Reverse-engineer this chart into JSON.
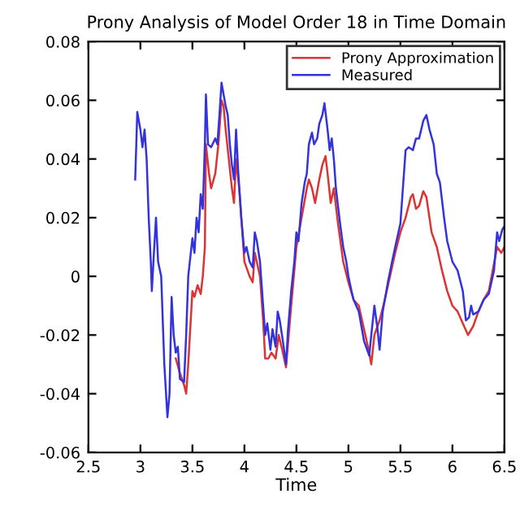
{
  "chart_data": {
    "type": "line",
    "title": "Prony Analysis of Model Order 18 in Time Domain",
    "xlabel": "Time",
    "xlim": [
      2.5,
      6.5
    ],
    "xticks": [
      2.5,
      3,
      3.5,
      4,
      4.5,
      5,
      5.5,
      6,
      6.5
    ],
    "ylim": [
      -0.06,
      0.08
    ],
    "yticks": [
      -0.06,
      -0.04,
      -0.02,
      0,
      0.02,
      0.04,
      0.06,
      0.08
    ],
    "grid": false,
    "legend": "top right",
    "line_style": "solid",
    "series": [
      {
        "name": "Prony Approximation",
        "color": "#dd3333",
        "x": [
          3.34,
          3.38,
          3.42,
          3.44,
          3.46,
          3.5,
          3.52,
          3.55,
          3.58,
          3.6,
          3.62,
          3.63,
          3.66,
          3.68,
          3.72,
          3.75,
          3.78,
          3.8,
          3.82,
          3.85,
          3.88,
          3.9,
          3.92,
          3.95,
          4.0,
          4.05,
          4.08,
          4.1,
          4.15,
          4.18,
          4.2,
          4.23,
          4.26,
          4.3,
          4.33,
          4.37,
          4.4,
          4.45,
          4.5,
          4.55,
          4.6,
          4.62,
          4.65,
          4.68,
          4.72,
          4.75,
          4.78,
          4.8,
          4.83,
          4.86,
          4.9,
          4.95,
          5.0,
          5.05,
          5.1,
          5.15,
          5.2,
          5.22,
          5.25,
          5.3,
          5.35,
          5.45,
          5.5,
          5.55,
          5.6,
          5.62,
          5.65,
          5.68,
          5.72,
          5.75,
          5.8,
          5.85,
          5.9,
          5.95,
          6.0,
          6.05,
          6.1,
          6.15,
          6.2,
          6.25,
          6.3,
          6.35,
          6.43,
          6.47,
          6.5
        ],
        "values": [
          -0.028,
          -0.033,
          -0.037,
          -0.04,
          -0.03,
          -0.005,
          -0.007,
          -0.003,
          -0.006,
          0.0,
          0.01,
          0.045,
          0.035,
          0.03,
          0.035,
          0.045,
          0.06,
          0.058,
          0.05,
          0.04,
          0.03,
          0.025,
          0.04,
          0.03,
          0.005,
          0.0,
          -0.002,
          0.008,
          0.0,
          -0.015,
          -0.028,
          -0.028,
          -0.026,
          -0.028,
          -0.02,
          -0.026,
          -0.031,
          -0.01,
          0.01,
          0.02,
          0.03,
          0.033,
          0.03,
          0.025,
          0.033,
          0.038,
          0.041,
          0.035,
          0.025,
          0.03,
          0.018,
          0.005,
          -0.002,
          -0.008,
          -0.01,
          -0.018,
          -0.026,
          -0.03,
          -0.02,
          -0.015,
          -0.008,
          0.008,
          0.015,
          0.02,
          0.027,
          0.028,
          0.023,
          0.024,
          0.029,
          0.027,
          0.015,
          0.01,
          0.002,
          -0.005,
          -0.01,
          -0.012,
          -0.016,
          -0.02,
          -0.017,
          -0.012,
          -0.008,
          -0.005,
          0.01,
          0.008,
          0.01
        ]
      },
      {
        "name": "Measured",
        "color": "#3333dd",
        "x": [
          2.95,
          2.97,
          3.0,
          3.02,
          3.04,
          3.06,
          3.08,
          3.1,
          3.11,
          3.13,
          3.15,
          3.17,
          3.2,
          3.23,
          3.26,
          3.28,
          3.3,
          3.32,
          3.34,
          3.36,
          3.38,
          3.42,
          3.44,
          3.46,
          3.5,
          3.52,
          3.54,
          3.56,
          3.58,
          3.6,
          3.62,
          3.63,
          3.65,
          3.68,
          3.72,
          3.74,
          3.76,
          3.78,
          3.8,
          3.82,
          3.84,
          3.86,
          3.88,
          3.9,
          3.92,
          3.94,
          3.97,
          4.0,
          4.02,
          4.05,
          4.08,
          4.1,
          4.12,
          4.15,
          4.18,
          4.2,
          4.22,
          4.25,
          4.27,
          4.3,
          4.32,
          4.34,
          4.37,
          4.4,
          4.42,
          4.45,
          4.48,
          4.5,
          4.52,
          4.55,
          4.58,
          4.6,
          4.62,
          4.65,
          4.67,
          4.7,
          4.72,
          4.75,
          4.77,
          4.8,
          4.82,
          4.84,
          4.86,
          4.88,
          4.92,
          4.95,
          4.98,
          5.0,
          5.03,
          5.05,
          5.1,
          5.15,
          5.2,
          5.22,
          5.25,
          5.28,
          5.3,
          5.33,
          5.38,
          5.42,
          5.45,
          5.5,
          5.55,
          5.58,
          5.62,
          5.65,
          5.68,
          5.72,
          5.75,
          5.78,
          5.82,
          5.85,
          5.88,
          5.92,
          5.95,
          6.0,
          6.05,
          6.1,
          6.13,
          6.16,
          6.18,
          6.2,
          6.25,
          6.3,
          6.35,
          6.4,
          6.43,
          6.45,
          6.48,
          6.5
        ],
        "values": [
          0.033,
          0.056,
          0.05,
          0.044,
          0.05,
          0.04,
          0.02,
          0.005,
          -0.005,
          0.008,
          0.02,
          0.005,
          0.0,
          -0.03,
          -0.048,
          -0.04,
          -0.007,
          -0.02,
          -0.026,
          -0.024,
          -0.035,
          -0.036,
          -0.02,
          0.0,
          0.013,
          0.008,
          0.02,
          0.015,
          0.028,
          0.023,
          0.045,
          0.062,
          0.045,
          0.044,
          0.047,
          0.045,
          0.055,
          0.066,
          0.062,
          0.058,
          0.055,
          0.045,
          0.038,
          0.033,
          0.05,
          0.036,
          0.02,
          0.008,
          0.01,
          0.005,
          0.003,
          0.015,
          0.012,
          0.005,
          -0.01,
          -0.02,
          -0.016,
          -0.025,
          -0.018,
          -0.024,
          -0.012,
          -0.015,
          -0.022,
          -0.03,
          -0.018,
          -0.005,
          0.005,
          0.015,
          0.012,
          0.025,
          0.032,
          0.035,
          0.045,
          0.049,
          0.045,
          0.047,
          0.052,
          0.055,
          0.059,
          0.05,
          0.043,
          0.047,
          0.04,
          0.03,
          0.018,
          0.01,
          0.005,
          0.0,
          -0.005,
          -0.008,
          -0.012,
          -0.022,
          -0.027,
          -0.02,
          -0.01,
          -0.018,
          -0.025,
          -0.012,
          -0.002,
          0.005,
          0.01,
          0.018,
          0.043,
          0.044,
          0.043,
          0.047,
          0.047,
          0.053,
          0.055,
          0.05,
          0.045,
          0.035,
          0.032,
          0.02,
          0.012,
          0.005,
          0.002,
          -0.005,
          -0.015,
          -0.014,
          -0.01,
          -0.013,
          -0.012,
          -0.008,
          -0.006,
          0.002,
          0.015,
          0.012,
          0.016,
          0.017
        ]
      }
    ]
  }
}
